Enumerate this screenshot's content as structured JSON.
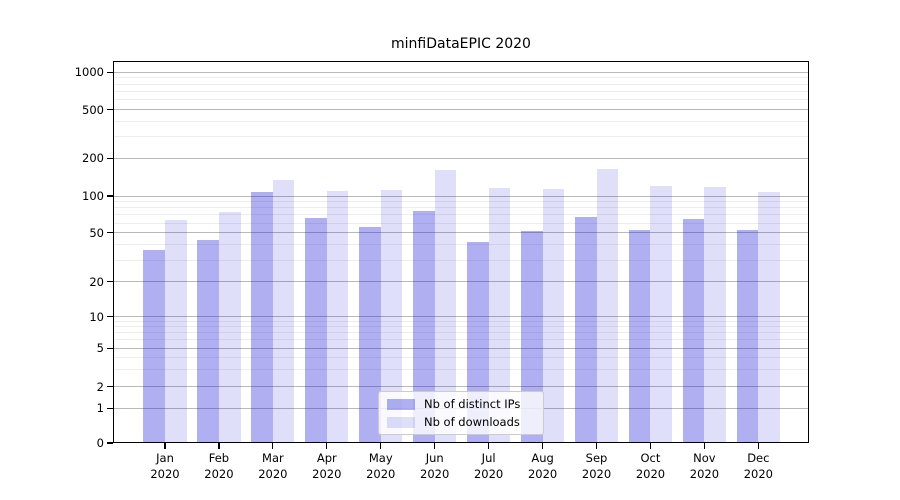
{
  "figure_title": "minfiDataEPIC 2020",
  "colors": {
    "bar_distinct_ips": "rgba(25,25,215,0.35)",
    "bar_downloads": "rgba(25,25,215,0.14)",
    "grid_major": "#b9b9b9",
    "grid_minor": "#ededed",
    "axis": "#000000"
  },
  "chart_data": {
    "type": "bar",
    "title": "minfiDataEPIC 2020",
    "categories": [
      "Jan",
      "Feb",
      "Mar",
      "Apr",
      "May",
      "Jun",
      "Jul",
      "Aug",
      "Sep",
      "Oct",
      "Nov",
      "Dec"
    ],
    "category_year": "2020",
    "series": [
      {
        "name": "Nb of distinct IPs",
        "color": "rgba(25,25,215,0.35)",
        "values": [
          36,
          44,
          108,
          66,
          56,
          75,
          42,
          52,
          67,
          53,
          65,
          53
        ]
      },
      {
        "name": "Nb of downloads",
        "color": "rgba(25,25,215,0.14)",
        "values": [
          63,
          74,
          135,
          110,
          112,
          160,
          115,
          113,
          164,
          121,
          118,
          108
        ]
      }
    ],
    "yscale": "symlog",
    "ylim": [
      0,
      1150
    ],
    "y_major_ticks": [
      0,
      1,
      2,
      5,
      10,
      20,
      50,
      100,
      200,
      500,
      1000
    ],
    "y_minor_ticks": [
      3,
      4,
      6,
      7,
      8,
      9,
      30,
      40,
      60,
      70,
      80,
      90,
      300,
      400,
      600,
      700,
      800,
      900
    ],
    "xlabel": "",
    "ylabel": "",
    "grid": true,
    "legend_position": "lower center"
  }
}
